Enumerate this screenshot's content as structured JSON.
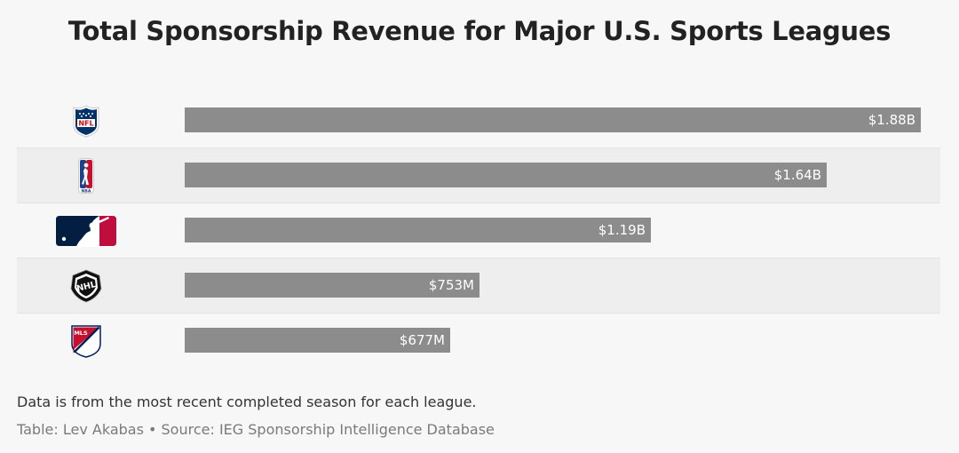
{
  "title": "Total Sponsorship Revenue for Major U.S. Sports Leagues",
  "note": "Data is from the most recent completed season for each league.",
  "credit": "Table: Lev Akabas • Source: IEG Sponsorship Intelligence Database",
  "colors": {
    "bar": "#8c8c8c",
    "background": "#f7f7f7",
    "alt_row": "#eeeeee"
  },
  "chart_data": {
    "type": "bar",
    "orientation": "horizontal",
    "title": "Total Sponsorship Revenue for Major U.S. Sports Leagues",
    "categories": [
      "NFL",
      "NBA",
      "MLB",
      "NHL",
      "MLS"
    ],
    "values": [
      1.88,
      1.64,
      1.19,
      0.753,
      0.677
    ],
    "unit": "billions USD",
    "value_labels": [
      "$1.88B",
      "$1.64B",
      "$1.19B",
      "$753M",
      "$677M"
    ],
    "logos": [
      "nfl-logo",
      "nba-logo",
      "mlb-logo",
      "nhl-logo",
      "mls-logo"
    ],
    "xlim": [
      0,
      1.88
    ],
    "legend": "none",
    "grid": false
  }
}
